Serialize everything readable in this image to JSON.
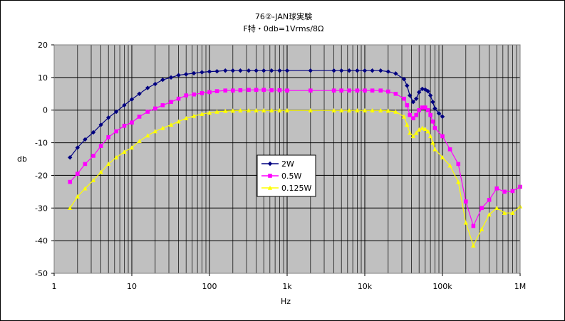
{
  "chart_data": {
    "type": "line",
    "title": "76②-JAN球実験",
    "subtitle": "F特・0db=1Vrms/8Ω",
    "xlabel": "Hz",
    "ylabel": "db",
    "xscale": "log",
    "xlim": [
      1,
      1000000
    ],
    "ylim": [
      -50,
      20
    ],
    "grid": true,
    "legend_position": "center-left inside plot",
    "x_tick_labels": [
      "1",
      "10",
      "100",
      "1k",
      "10k",
      "100k",
      "1M"
    ],
    "y_tick_labels": [
      "20",
      "10",
      "0",
      "-10",
      "-20",
      "-30",
      "-40",
      "-50"
    ],
    "series": [
      {
        "name": "2W",
        "color": "#000080",
        "marker": "diamond",
        "x": [
          1.6,
          2,
          2.5,
          3.2,
          4,
          5,
          6.3,
          8,
          10,
          12.5,
          16,
          20,
          25,
          32,
          40,
          50,
          63,
          80,
          100,
          125,
          160,
          200,
          250,
          320,
          400,
          500,
          630,
          800,
          1000,
          2000,
          4000,
          5000,
          6300,
          8000,
          10000,
          12500,
          16000,
          20000,
          25000,
          32000,
          35000,
          38000,
          42000,
          46000,
          50000,
          55000,
          60000,
          65000,
          70000,
          75000,
          80000,
          90000,
          100000
        ],
        "y": [
          -14.5,
          -11.5,
          -9,
          -6.8,
          -4.5,
          -2.3,
          -0.5,
          1.5,
          3.3,
          5,
          6.8,
          8,
          9.3,
          10,
          10.7,
          11,
          11.3,
          11.6,
          11.8,
          11.9,
          12.1,
          12.1,
          12.1,
          12.1,
          12.1,
          12.1,
          12.1,
          12.1,
          12.1,
          12.1,
          12.1,
          12.1,
          12.1,
          12.1,
          12.1,
          12.1,
          12.1,
          11.8,
          11.2,
          9.5,
          7.5,
          4.5,
          2.5,
          3.5,
          5.5,
          6.5,
          6.3,
          5.8,
          4.5,
          2.5,
          0.5,
          -1,
          -2
        ]
      },
      {
        "name": "0.5W",
        "color": "#FF00FF",
        "marker": "square",
        "x": [
          1.6,
          2,
          2.5,
          3.2,
          4,
          5,
          6.3,
          8,
          10,
          12.5,
          16,
          20,
          25,
          32,
          40,
          50,
          63,
          80,
          100,
          125,
          160,
          200,
          250,
          320,
          400,
          500,
          630,
          800,
          1000,
          2000,
          4000,
          5000,
          6300,
          8000,
          10000,
          12500,
          16000,
          20000,
          25000,
          32000,
          35000,
          38000,
          42000,
          46000,
          50000,
          55000,
          60000,
          65000,
          70000,
          75000,
          80000,
          100000,
          125000,
          160000,
          200000,
          250000,
          320000,
          400000,
          500000,
          630000,
          800000,
          1000000
        ],
        "y": [
          -22,
          -19.5,
          -16.5,
          -14,
          -11,
          -8.3,
          -6.5,
          -4.8,
          -3.8,
          -2,
          -0.5,
          0.5,
          1.5,
          2.5,
          3.5,
          4.5,
          4.8,
          5.2,
          5.5,
          5.8,
          6,
          6,
          6.1,
          6.2,
          6.2,
          6.2,
          6.1,
          6.1,
          6,
          6,
          6,
          6,
          6,
          6,
          6,
          6,
          6,
          5.7,
          5,
          3.5,
          1.5,
          -1.5,
          -2.5,
          -1.5,
          0,
          0.8,
          0.8,
          0,
          -1.5,
          -3.5,
          -5.5,
          -8,
          -12,
          -16.5,
          -28,
          -35.5,
          -30,
          -27.5,
          -24,
          -25,
          -24.8,
          -23.5
        ]
      },
      {
        "name": "0.125W",
        "color": "#FFFF00",
        "marker": "triangle",
        "x": [
          1.6,
          2,
          2.5,
          3.2,
          4,
          5,
          6.3,
          8,
          10,
          12.5,
          16,
          20,
          25,
          32,
          40,
          50,
          63,
          80,
          100,
          125,
          160,
          200,
          250,
          320,
          400,
          500,
          630,
          800,
          1000,
          2000,
          4000,
          5000,
          6300,
          8000,
          10000,
          12500,
          16000,
          20000,
          25000,
          32000,
          35000,
          38000,
          42000,
          46000,
          50000,
          55000,
          60000,
          65000,
          70000,
          75000,
          80000,
          100000,
          125000,
          160000,
          200000,
          250000,
          320000,
          400000,
          500000,
          630000,
          800000,
          1000000
        ],
        "y": [
          -30,
          -26.5,
          -24,
          -21.5,
          -19,
          -16.5,
          -14.5,
          -12.8,
          -11.5,
          -9.5,
          -7.8,
          -6.5,
          -5.5,
          -4.5,
          -3.5,
          -2.5,
          -1.8,
          -1.2,
          -0.8,
          -0.5,
          -0.3,
          -0.2,
          -0.1,
          -0.1,
          -0.1,
          -0.1,
          -0.1,
          -0.1,
          -0.1,
          -0.1,
          -0.1,
          -0.1,
          -0.1,
          -0.1,
          -0.1,
          -0.1,
          -0.1,
          -0.2,
          -0.5,
          -2,
          -4.5,
          -7,
          -8,
          -7,
          -6,
          -5.5,
          -5.8,
          -6.5,
          -8,
          -10,
          -12,
          -14.5,
          -17,
          -22,
          -34.5,
          -41.5,
          -36.5,
          -32,
          -30,
          -31.5,
          -31.5,
          -29.5
        ]
      }
    ]
  }
}
